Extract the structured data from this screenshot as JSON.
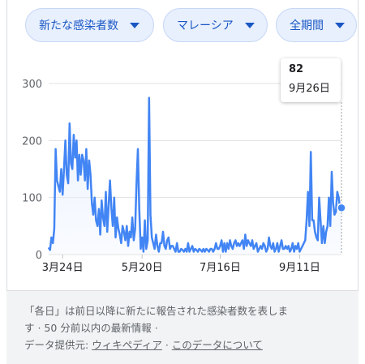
{
  "filters": {
    "metric": "新たな感染者数",
    "region": "マレーシア",
    "period": "全期間"
  },
  "tooltip": {
    "value": "82",
    "date": "9月26日"
  },
  "footer": {
    "line1": "「各日」は前日以降に新たに報告された感染者数を表しま",
    "line2": "す · 50 分前以内の最新情報 ·",
    "source_label": "データ提供元:",
    "source_link": "ウィキペディア",
    "separator": "·",
    "about_link": "このデータについて"
  },
  "colors": {
    "line": "#4285f4",
    "fill": "#e8f0fe",
    "grid": "#e0e0e0",
    "chip_bg": "#e8f0fe",
    "chip_text": "#1a57c4"
  },
  "chart_data": {
    "type": "area",
    "title": "",
    "xlabel": "",
    "ylabel": "",
    "ylim": [
      0,
      300
    ],
    "yticks": [
      0,
      100,
      200,
      300
    ],
    "xtick_labels": [
      "3月24日",
      "5月20日",
      "7月16日",
      "9月11日"
    ],
    "x_range_days": [
      0,
      210
    ],
    "xtick_days": [
      10,
      67,
      123,
      180
    ],
    "series": [
      {
        "x": [
          0,
          1,
          2,
          3,
          4,
          5,
          6,
          7,
          8,
          9,
          10,
          11,
          12,
          13,
          14,
          15,
          16,
          17,
          18,
          19,
          20,
          21,
          22,
          23,
          24,
          25,
          26,
          27,
          28,
          29,
          30,
          31,
          32,
          33,
          34,
          35,
          36,
          37,
          38,
          39,
          40,
          41,
          42,
          43,
          44,
          45,
          46,
          47,
          48,
          49,
          50,
          51,
          52,
          53,
          54,
          55,
          56,
          57,
          58,
          59,
          60,
          61,
          62,
          63,
          64,
          65,
          66,
          67,
          68,
          69,
          70,
          71,
          72,
          73,
          74,
          75,
          76,
          77,
          78,
          79,
          80,
          81,
          82,
          83,
          84,
          85,
          86,
          87,
          88,
          89,
          90,
          91,
          92,
          93,
          94,
          95,
          96,
          97,
          98,
          99,
          100,
          101,
          102,
          103,
          104,
          105,
          106,
          107,
          108,
          109,
          110,
          111,
          112,
          113,
          114,
          115,
          116,
          117,
          118,
          119,
          120,
          121,
          122,
          123,
          124,
          125,
          126,
          127,
          128,
          129,
          130,
          131,
          132,
          133,
          134,
          135,
          136,
          137,
          138,
          139,
          140,
          141,
          142,
          143,
          144,
          145,
          146,
          147,
          148,
          149,
          150,
          151,
          152,
          153,
          154,
          155,
          156,
          157,
          158,
          159,
          160,
          161,
          162,
          163,
          164,
          165,
          166,
          167,
          168,
          169,
          170,
          171,
          172,
          173,
          174,
          175,
          176,
          177,
          178,
          179,
          180,
          181,
          182,
          183,
          184,
          185,
          186,
          187,
          188,
          189,
          190,
          191,
          192,
          193,
          194,
          195,
          196,
          197,
          198,
          199,
          200,
          201,
          202,
          203,
          204,
          205,
          206,
          207,
          208,
          209,
          210
        ],
        "y": [
          12,
          8,
          30,
          20,
          45,
          185,
          130,
          120,
          110,
          150,
          105,
          150,
          200,
          140,
          125,
          230,
          160,
          150,
          210,
          170,
          200,
          130,
          175,
          140,
          175,
          165,
          130,
          185,
          115,
          165,
          140,
          90,
          70,
          100,
          60,
          50,
          80,
          35,
          95,
          65,
          50,
          110,
          40,
          85,
          130,
          80,
          50,
          100,
          30,
          65,
          45,
          35,
          20,
          50,
          40,
          25,
          50,
          15,
          40,
          30,
          65,
          25,
          45,
          125,
          185,
          80,
          10,
          30,
          5,
          60,
          10,
          25,
          275,
          70,
          30,
          20,
          10,
          35,
          15,
          5,
          20,
          20,
          40,
          15,
          10,
          25,
          30,
          10,
          15,
          15,
          10,
          5,
          20,
          5,
          5,
          10,
          8,
          5,
          10,
          5,
          20,
          5,
          10,
          15,
          5,
          10,
          8,
          5,
          10,
          8,
          5,
          10,
          5,
          10,
          8,
          5,
          10,
          10,
          5,
          10,
          20,
          10,
          10,
          15,
          25,
          5,
          20,
          5,
          20,
          10,
          25,
          15,
          10,
          20,
          25,
          15,
          20,
          15,
          20,
          25,
          10,
          35,
          15,
          25,
          20,
          15,
          25,
          10,
          15,
          20,
          5,
          10,
          15,
          10,
          20,
          15,
          5,
          10,
          30,
          15,
          10,
          20,
          5,
          10,
          20,
          5,
          15,
          25,
          10,
          10,
          15,
          10,
          15,
          5,
          10,
          20,
          5,
          15,
          10,
          20,
          5,
          10,
          15,
          20,
          25,
          60,
          110,
          50,
          180,
          60,
          60,
          40,
          30,
          25,
          100,
          60,
          20,
          50,
          20,
          40,
          50,
          100,
          50,
          145,
          90,
          70,
          75,
          110,
          100,
          80,
          82
        ]
      }
    ]
  }
}
